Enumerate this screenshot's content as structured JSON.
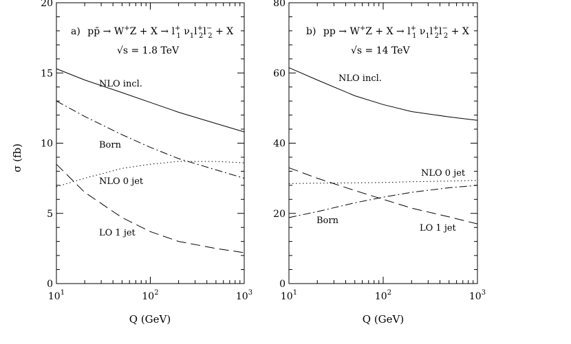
{
  "colors": {
    "ink": "#000000",
    "background": "#ffffff"
  },
  "chart_data": [
    {
      "type": "line",
      "panel": "a)",
      "process": {
        "lhs": "pp̄ → W",
        "mid": "Z + X → l",
        "l1": "1",
        "nu": " ν",
        "nu1": "1",
        "l2": "l",
        "l2sub": "2",
        "l3": "l",
        "l3sub": "2",
        "tail": " + X"
      },
      "energy": "√s = 1.8 TeV",
      "xlabel": "Q (GeV)",
      "ylabel": "σ (fb)",
      "xscale": "log",
      "xlim": [
        10,
        1000
      ],
      "ylim": [
        0,
        20
      ],
      "yticks": [
        0,
        5,
        10,
        15,
        20
      ],
      "xtick_base": "10",
      "xtick_exps": [
        "1",
        "2",
        "3"
      ],
      "series": [
        {
          "name": "NLO incl.",
          "style": "solid",
          "x": [
            10,
            20,
            50,
            100,
            200,
            500,
            1000
          ],
          "y": [
            15.3,
            14.5,
            13.6,
            12.9,
            12.2,
            11.4,
            10.8
          ]
        },
        {
          "name": "Born",
          "style": "dashdot",
          "x": [
            10,
            20,
            50,
            100,
            200,
            500,
            1000
          ],
          "y": [
            13.0,
            11.9,
            10.6,
            9.7,
            8.9,
            8.1,
            7.5
          ]
        },
        {
          "name": "NLO 0 jet",
          "style": "dotted",
          "x": [
            10,
            20,
            50,
            100,
            200,
            500,
            1000
          ],
          "y": [
            6.9,
            7.5,
            8.2,
            8.5,
            8.7,
            8.7,
            8.6
          ]
        },
        {
          "name": "LO 1 jet",
          "style": "dashed",
          "x": [
            10,
            20,
            50,
            100,
            200,
            500,
            1000
          ],
          "y": [
            8.5,
            6.5,
            4.7,
            3.7,
            3.0,
            2.5,
            2.2
          ]
        }
      ]
    },
    {
      "type": "line",
      "panel": "b)",
      "process": {
        "lhs": "pp → W",
        "mid": "Z + X → l",
        "l1": "1",
        "nu": " ν",
        "nu1": "1",
        "l2": "l",
        "l2sub": "2",
        "l3": "l",
        "l3sub": "2",
        "tail": " + X"
      },
      "energy": "√s = 14 TeV",
      "xlabel": "Q (GeV)",
      "ylabel": "",
      "xscale": "log",
      "xlim": [
        10,
        1000
      ],
      "ylim": [
        0,
        80
      ],
      "yticks": [
        0,
        20,
        40,
        60,
        80
      ],
      "xtick_base": "10",
      "xtick_exps": [
        "1",
        "2",
        "3"
      ],
      "series": [
        {
          "name": "NLO incl.",
          "style": "solid",
          "x": [
            10,
            20,
            50,
            100,
            200,
            500,
            1000
          ],
          "y": [
            61.5,
            58.0,
            53.5,
            51.0,
            49.0,
            47.5,
            46.5
          ]
        },
        {
          "name": "NLO 0 jet",
          "style": "dotted",
          "x": [
            10,
            20,
            50,
            100,
            200,
            500,
            1000
          ],
          "y": [
            28.5,
            28.6,
            28.7,
            28.8,
            29.0,
            29.2,
            29.4
          ]
        },
        {
          "name": "Born",
          "style": "dashdot",
          "x": [
            10,
            20,
            50,
            100,
            200,
            500,
            1000
          ],
          "y": [
            18.8,
            20.5,
            23.0,
            24.6,
            26.0,
            27.3,
            28.0
          ]
        },
        {
          "name": "LO 1 jet",
          "style": "dashed",
          "x": [
            10,
            20,
            50,
            100,
            200,
            500,
            1000
          ],
          "y": [
            33.0,
            30.0,
            26.5,
            24.0,
            21.5,
            19.0,
            17.0
          ]
        }
      ]
    }
  ]
}
